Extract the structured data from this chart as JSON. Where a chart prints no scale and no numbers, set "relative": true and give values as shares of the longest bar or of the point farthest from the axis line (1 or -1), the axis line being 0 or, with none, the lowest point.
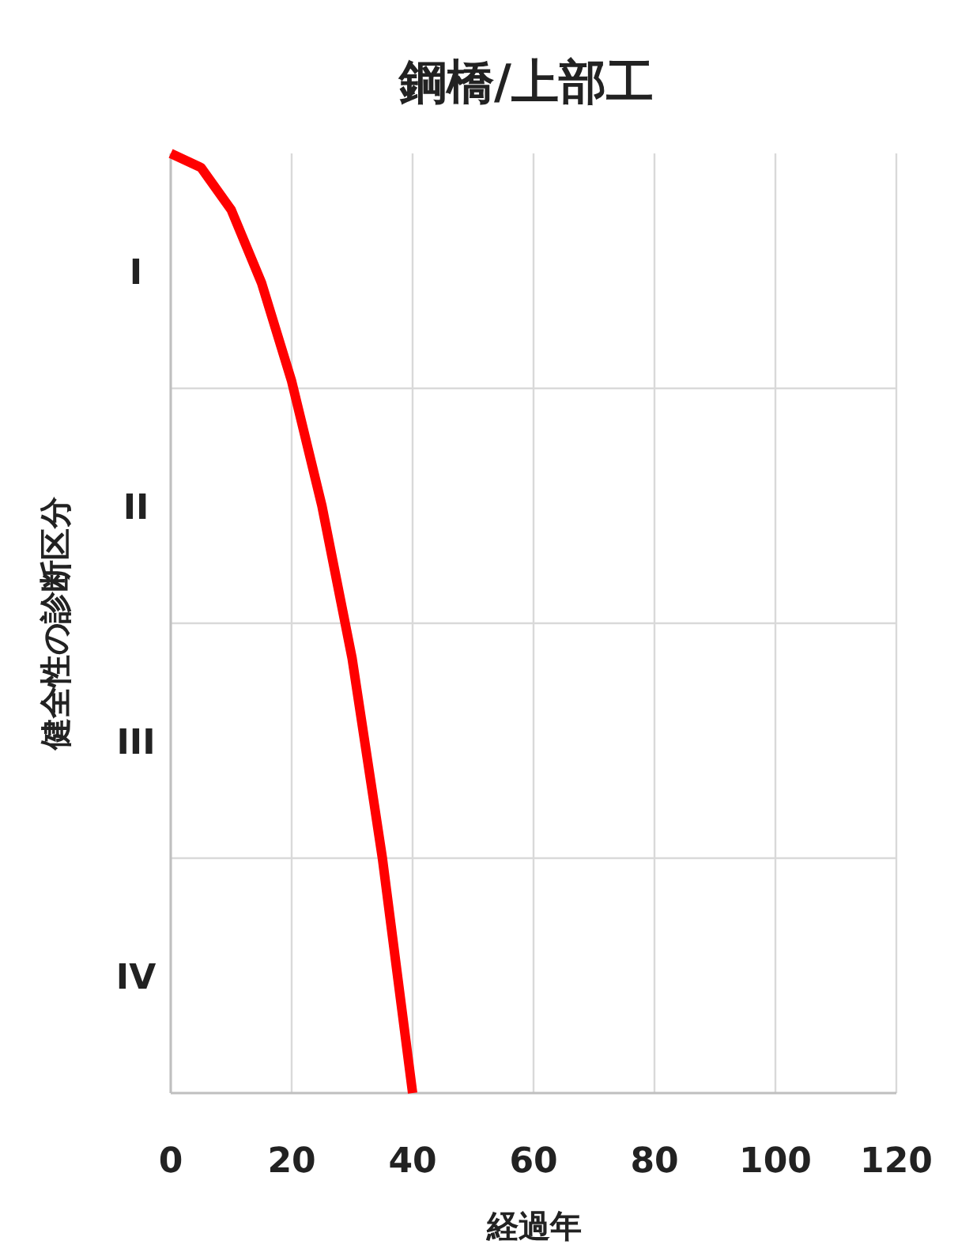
{
  "chart_data": {
    "type": "line",
    "title": "鋼橋/上部工",
    "xlabel": "経過年",
    "ylabel": "健全性の診断区分",
    "x": [
      0,
      5,
      10,
      15,
      20,
      25,
      30,
      35,
      40
    ],
    "series": [
      {
        "color": "#ff0000",
        "values": [
          1,
          0.985,
          0.94,
          0.8625,
          0.7575,
          0.625,
          0.4625,
          0.25,
          0
        ]
      }
    ],
    "relative": true,
    "xlim": [
      0,
      120
    ],
    "xticks": [
      0,
      20,
      40,
      60,
      80,
      100,
      120
    ],
    "ref_lines": [
      {
        "axis": "y",
        "value": 0.75,
        "color": "#d9d9d9"
      },
      {
        "axis": "y",
        "value": 0.5,
        "color": "#d9d9d9"
      },
      {
        "axis": "y",
        "value": 0.25,
        "color": "#d9d9d9"
      }
    ],
    "annotations": [
      "I",
      "II",
      "III",
      "IV"
    ],
    "grid": "x"
  }
}
